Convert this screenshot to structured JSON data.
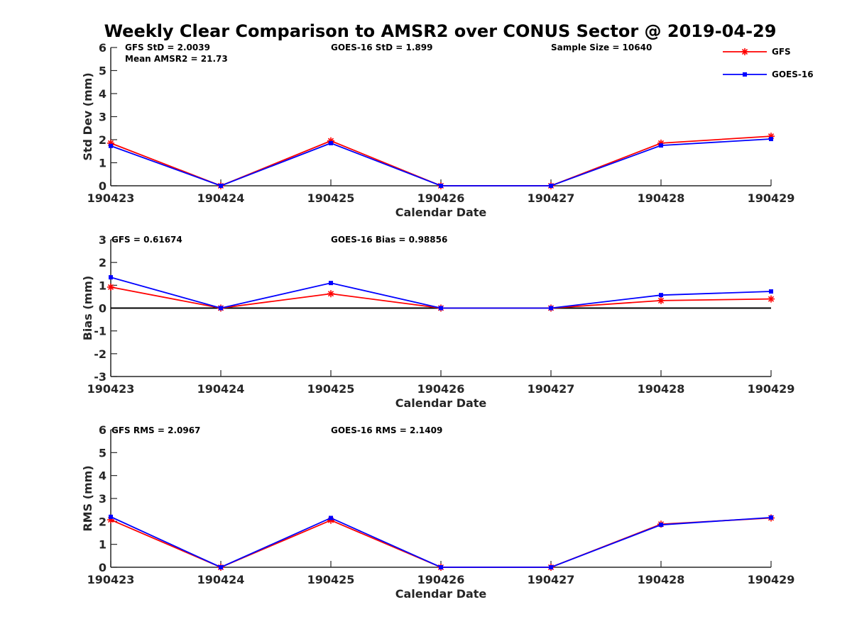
{
  "figure": {
    "title": "Weekly Clear Comparison to AMSR2 over CONUS Sector @ 2019-04-29"
  },
  "legend": {
    "placement": "top-right",
    "entries": [
      {
        "name": "GFS",
        "color": "#ff0000",
        "marker": "asterisk"
      },
      {
        "name": "GOES-16",
        "color": "#0000ff",
        "marker": "square"
      }
    ]
  },
  "annotations": {
    "std": [
      "GFS StD = 2.0039",
      "Mean AMSR2 = 21.73",
      "GOES-16 StD = 1.899",
      "Sample Size = 10640"
    ],
    "bias": [
      "GFS = 0.61674",
      "GOES-16 Bias  = 0.98856"
    ],
    "rms": [
      "GFS RMS = 2.0967",
      "GOES-16 RMS = 2.1409"
    ]
  },
  "chart_data": [
    {
      "type": "line",
      "title": "",
      "xlabel": "Calendar Date",
      "ylabel": "Std Dev (mm)",
      "categories": [
        "190423",
        "190424",
        "190425",
        "190426",
        "190427",
        "190428",
        "190429"
      ],
      "ylim": [
        0,
        6
      ],
      "yticks": [
        0,
        1,
        2,
        3,
        4,
        5,
        6
      ],
      "grid": false,
      "zero_line": false,
      "series": [
        {
          "name": "GFS",
          "color": "#ff0000",
          "values": [
            1.85,
            0.0,
            1.95,
            0.0,
            0.0,
            1.85,
            2.15
          ]
        },
        {
          "name": "GOES-16",
          "color": "#0000ff",
          "values": [
            1.73,
            0.0,
            1.85,
            0.0,
            0.0,
            1.75,
            2.03
          ]
        }
      ]
    },
    {
      "type": "line",
      "title": "",
      "xlabel": "Calendar Date",
      "ylabel": "Bias (mm)",
      "categories": [
        "190423",
        "190424",
        "190425",
        "190426",
        "190427",
        "190428",
        "190429"
      ],
      "ylim": [
        -3,
        3
      ],
      "yticks": [
        -3,
        -2,
        -1,
        0,
        1,
        2,
        3
      ],
      "grid": false,
      "zero_line": true,
      "series": [
        {
          "name": "GFS",
          "color": "#ff0000",
          "values": [
            0.92,
            0.0,
            0.63,
            0.0,
            0.0,
            0.33,
            0.4
          ]
        },
        {
          "name": "GOES-16",
          "color": "#0000ff",
          "values": [
            1.35,
            0.0,
            1.1,
            0.0,
            0.0,
            0.57,
            0.73
          ]
        }
      ]
    },
    {
      "type": "line",
      "title": "",
      "xlabel": "Calendar Date",
      "ylabel": "RMS (mm)",
      "categories": [
        "190423",
        "190424",
        "190425",
        "190426",
        "190427",
        "190428",
        "190429"
      ],
      "ylim": [
        0,
        6
      ],
      "yticks": [
        0,
        1,
        2,
        3,
        4,
        5,
        6
      ],
      "grid": false,
      "zero_line": false,
      "series": [
        {
          "name": "GFS",
          "color": "#ff0000",
          "values": [
            2.07,
            0.0,
            2.05,
            0.0,
            0.0,
            1.88,
            2.15
          ]
        },
        {
          "name": "GOES-16",
          "color": "#0000ff",
          "values": [
            2.2,
            0.0,
            2.15,
            0.0,
            0.0,
            1.85,
            2.17
          ]
        }
      ]
    }
  ]
}
